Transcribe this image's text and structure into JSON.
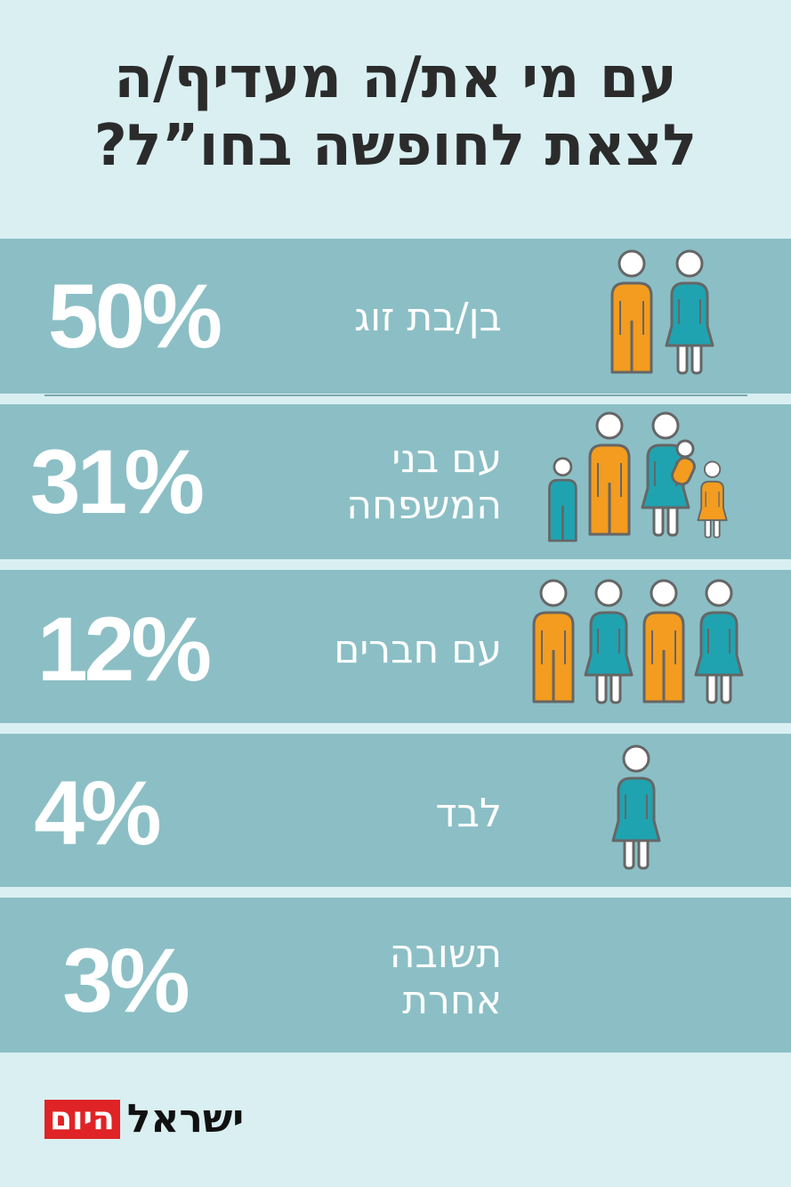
{
  "title_lines": [
    "עם מי את/ה מעדיף/ה",
    "לצאת לחופשה בחו”ל?"
  ],
  "colors": {
    "background": "#d9eff2",
    "row": "#8bbfc5",
    "orange": "#f39c1f",
    "teal": "#1fa3b0",
    "outline": "#666666",
    "logo_red": "#e02326"
  },
  "chart_data": {
    "type": "table",
    "title": "עם מי את/ה מעדיף/ה לצאת לחופשה בחו”ל?",
    "categories": [
      "בן/בת זוג",
      "עם בני המשפחה",
      "עם חברים",
      "לבד",
      "תשובה אחרת"
    ],
    "values": [
      50,
      31,
      12,
      4,
      3
    ],
    "rows": [
      {
        "label_lines": [
          "בן/בת זוג"
        ],
        "value": 50,
        "value_text": "50%",
        "icon": "couple-icon"
      },
      {
        "label_lines": [
          "עם בני",
          "המשפחה"
        ],
        "value": 31,
        "value_text": "31%",
        "icon": "family-icon"
      },
      {
        "label_lines": [
          "עם חברים"
        ],
        "value": 12,
        "value_text": "12%",
        "icon": "friends-icon"
      },
      {
        "label_lines": [
          "לבד"
        ],
        "value": 4,
        "value_text": "4%",
        "icon": "single-person-icon"
      },
      {
        "label_lines": [
          "תשובה",
          "אחרת"
        ],
        "value": 3,
        "value_text": "3%",
        "icon": ""
      }
    ]
  },
  "logo": {
    "red_text": "היום",
    "black_text": "ישראל"
  }
}
